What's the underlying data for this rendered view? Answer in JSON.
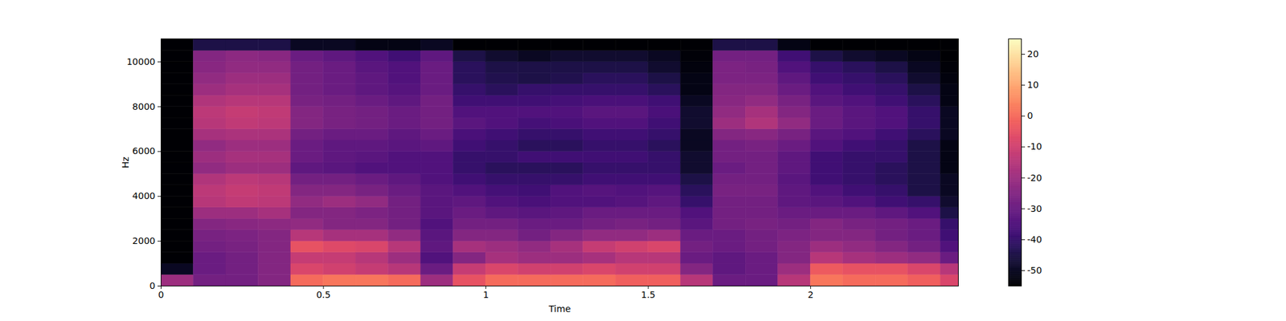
{
  "chart_data": {
    "type": "heatmap",
    "x_label": "Time",
    "y_label": "Hz",
    "xlim": [
      0,
      2.455
    ],
    "xticks": [
      0,
      0.5,
      1,
      1.5,
      2
    ],
    "ylim": [
      0,
      11025
    ],
    "yticks": [
      0,
      2000,
      4000,
      6000,
      8000,
      10000
    ],
    "color": "magma",
    "x_edges": [
      0,
      0.1,
      0.2,
      0.3,
      0.4,
      0.5,
      0.6,
      0.7,
      0.8,
      0.9,
      1.0,
      1.1,
      1.2,
      1.3,
      1.4,
      1.5,
      1.6,
      1.7,
      1.8,
      1.9,
      2.0,
      2.1,
      2.2,
      2.3,
      2.4,
      2.455
    ],
    "y_edges": [
      0,
      500,
      1000,
      1500,
      2000,
      2500,
      3000,
      3500,
      4000,
      4500,
      5000,
      5500,
      6000,
      6500,
      7000,
      7500,
      8000,
      8500,
      9000,
      9500,
      10000,
      10500,
      11025
    ],
    "z": [
      [
        -20,
        -28,
        -28,
        -25,
        0,
        2,
        2,
        0,
        -20,
        -5,
        0,
        0,
        0,
        0,
        -2,
        -2,
        -15,
        -30,
        -30,
        -15,
        2,
        0,
        0,
        -2,
        -8
      ],
      [
        -50,
        -30,
        -28,
        -25,
        -8,
        -10,
        -12,
        -15,
        -30,
        -12,
        -8,
        -10,
        -10,
        -8,
        -10,
        -10,
        -25,
        -32,
        -30,
        -20,
        -3,
        -5,
        -5,
        -8,
        -15
      ],
      [
        -55,
        -30,
        -28,
        -25,
        -12,
        -12,
        -15,
        -20,
        -35,
        -25,
        -18,
        -20,
        -20,
        -18,
        -15,
        -15,
        -30,
        -32,
        -30,
        -25,
        -15,
        -18,
        -20,
        -22,
        -30
      ],
      [
        -55,
        -28,
        -27,
        -25,
        -5,
        -7,
        -8,
        -15,
        -32,
        -18,
        -20,
        -22,
        -18,
        -12,
        -10,
        -8,
        -28,
        -30,
        -28,
        -25,
        -20,
        -22,
        -25,
        -28,
        -35
      ],
      [
        -55,
        -27,
        -26,
        -25,
        -15,
        -18,
        -18,
        -22,
        -33,
        -25,
        -25,
        -28,
        -25,
        -22,
        -22,
        -20,
        -30,
        -30,
        -28,
        -26,
        -25,
        -25,
        -28,
        -30,
        -38
      ],
      [
        -55,
        -25,
        -24,
        -23,
        -22,
        -25,
        -25,
        -28,
        -35,
        -28,
        -28,
        -30,
        -30,
        -28,
        -27,
        -28,
        -33,
        -28,
        -27,
        -28,
        -25,
        -27,
        -28,
        -30,
        -40
      ],
      [
        -55,
        -20,
        -20,
        -18,
        -25,
        -25,
        -26,
        -28,
        -33,
        -30,
        -32,
        -33,
        -32,
        -30,
        -30,
        -30,
        -35,
        -28,
        -28,
        -30,
        -30,
        -30,
        -32,
        -35,
        -45
      ],
      [
        -55,
        -15,
        -13,
        -14,
        -22,
        -20,
        -22,
        -28,
        -33,
        -32,
        -35,
        -36,
        -35,
        -35,
        -34,
        -32,
        -40,
        -28,
        -28,
        -32,
        -33,
        -35,
        -38,
        -40,
        -48
      ],
      [
        -55,
        -14,
        -12,
        -13,
        -25,
        -25,
        -27,
        -30,
        -33,
        -35,
        -37,
        -38,
        -35,
        -34,
        -35,
        -34,
        -42,
        -27,
        -27,
        -32,
        -35,
        -38,
        -40,
        -45,
        -50
      ],
      [
        -55,
        -16,
        -14,
        -15,
        -28,
        -28,
        -30,
        -32,
        -35,
        -38,
        -40,
        -40,
        -40,
        -38,
        -38,
        -38,
        -45,
        -28,
        -28,
        -33,
        -38,
        -40,
        -42,
        -45,
        -50
      ],
      [
        -55,
        -22,
        -20,
        -20,
        -32,
        -33,
        -35,
        -35,
        -35,
        -40,
        -42,
        -42,
        -42,
        -40,
        -40,
        -40,
        -48,
        -30,
        -28,
        -32,
        -38,
        -40,
        -42,
        -45,
        -52
      ],
      [
        -55,
        -20,
        -18,
        -18,
        -30,
        -32,
        -33,
        -35,
        -35,
        -40,
        -40,
        -38,
        -38,
        -38,
        -38,
        -40,
        -48,
        -28,
        -28,
        -32,
        -38,
        -40,
        -40,
        -45,
        -52
      ],
      [
        -55,
        -22,
        -20,
        -20,
        -30,
        -32,
        -32,
        -33,
        -32,
        -38,
        -40,
        -42,
        -42,
        -40,
        -40,
        -42,
        -50,
        -28,
        -27,
        -30,
        -35,
        -38,
        -40,
        -45,
        -52
      ],
      [
        -55,
        -18,
        -17,
        -17,
        -28,
        -30,
        -30,
        -32,
        -30,
        -36,
        -38,
        -40,
        -40,
        -38,
        -38,
        -40,
        -50,
        -25,
        -24,
        -27,
        -33,
        -35,
        -38,
        -42,
        -50
      ],
      [
        -55,
        -15,
        -13,
        -14,
        -25,
        -27,
        -28,
        -30,
        -28,
        -33,
        -35,
        -37,
        -36,
        -35,
        -35,
        -38,
        -48,
        -20,
        -16,
        -22,
        -30,
        -33,
        -35,
        -40,
        -50
      ],
      [
        -55,
        -14,
        -12,
        -13,
        -25,
        -27,
        -28,
        -30,
        -28,
        -35,
        -35,
        -35,
        -35,
        -33,
        -33,
        -36,
        -48,
        -22,
        -18,
        -25,
        -30,
        -33,
        -35,
        -40,
        -50
      ],
      [
        -55,
        -16,
        -15,
        -15,
        -27,
        -28,
        -30,
        -32,
        -28,
        -38,
        -38,
        -38,
        -37,
        -36,
        -36,
        -38,
        -50,
        -24,
        -22,
        -27,
        -33,
        -35,
        -38,
        -42,
        -52
      ],
      [
        -55,
        -20,
        -18,
        -18,
        -28,
        -30,
        -32,
        -34,
        -30,
        -40,
        -42,
        -40,
        -40,
        -40,
        -40,
        -42,
        -52,
        -25,
        -25,
        -30,
        -35,
        -38,
        -40,
        -45,
        -52
      ],
      [
        -55,
        -22,
        -20,
        -20,
        -28,
        -30,
        -32,
        -35,
        -30,
        -42,
        -44,
        -45,
        -44,
        -42,
        -42,
        -45,
        -52,
        -26,
        -26,
        -32,
        -38,
        -40,
        -42,
        -48,
        -53
      ],
      [
        -55,
        -24,
        -22,
        -22,
        -28,
        -30,
        -33,
        -35,
        -30,
        -42,
        -45,
        -45,
        -45,
        -45,
        -45,
        -48,
        -53,
        -26,
        -27,
        -35,
        -40,
        -42,
        -45,
        -50,
        -54
      ],
      [
        -55,
        -25,
        -23,
        -24,
        -30,
        -32,
        -35,
        -38,
        -32,
        -45,
        -48,
        -50,
        -48,
        -48,
        -48,
        -50,
        -54,
        -28,
        -28,
        -38,
        -45,
        -48,
        -50,
        -52,
        -55
      ],
      [
        -55,
        -45,
        -45,
        -45,
        -50,
        -50,
        -52,
        -52,
        -50,
        -55,
        -55,
        -55,
        -55,
        -55,
        -55,
        -55,
        -55,
        -45,
        -45,
        -52,
        -55,
        -55,
        -55,
        -55,
        -55
      ]
    ],
    "colorbar": {
      "range": [
        -55,
        25
      ],
      "ticks": [
        20,
        10,
        0,
        -10,
        -20,
        -30,
        -40,
        -50
      ]
    }
  }
}
